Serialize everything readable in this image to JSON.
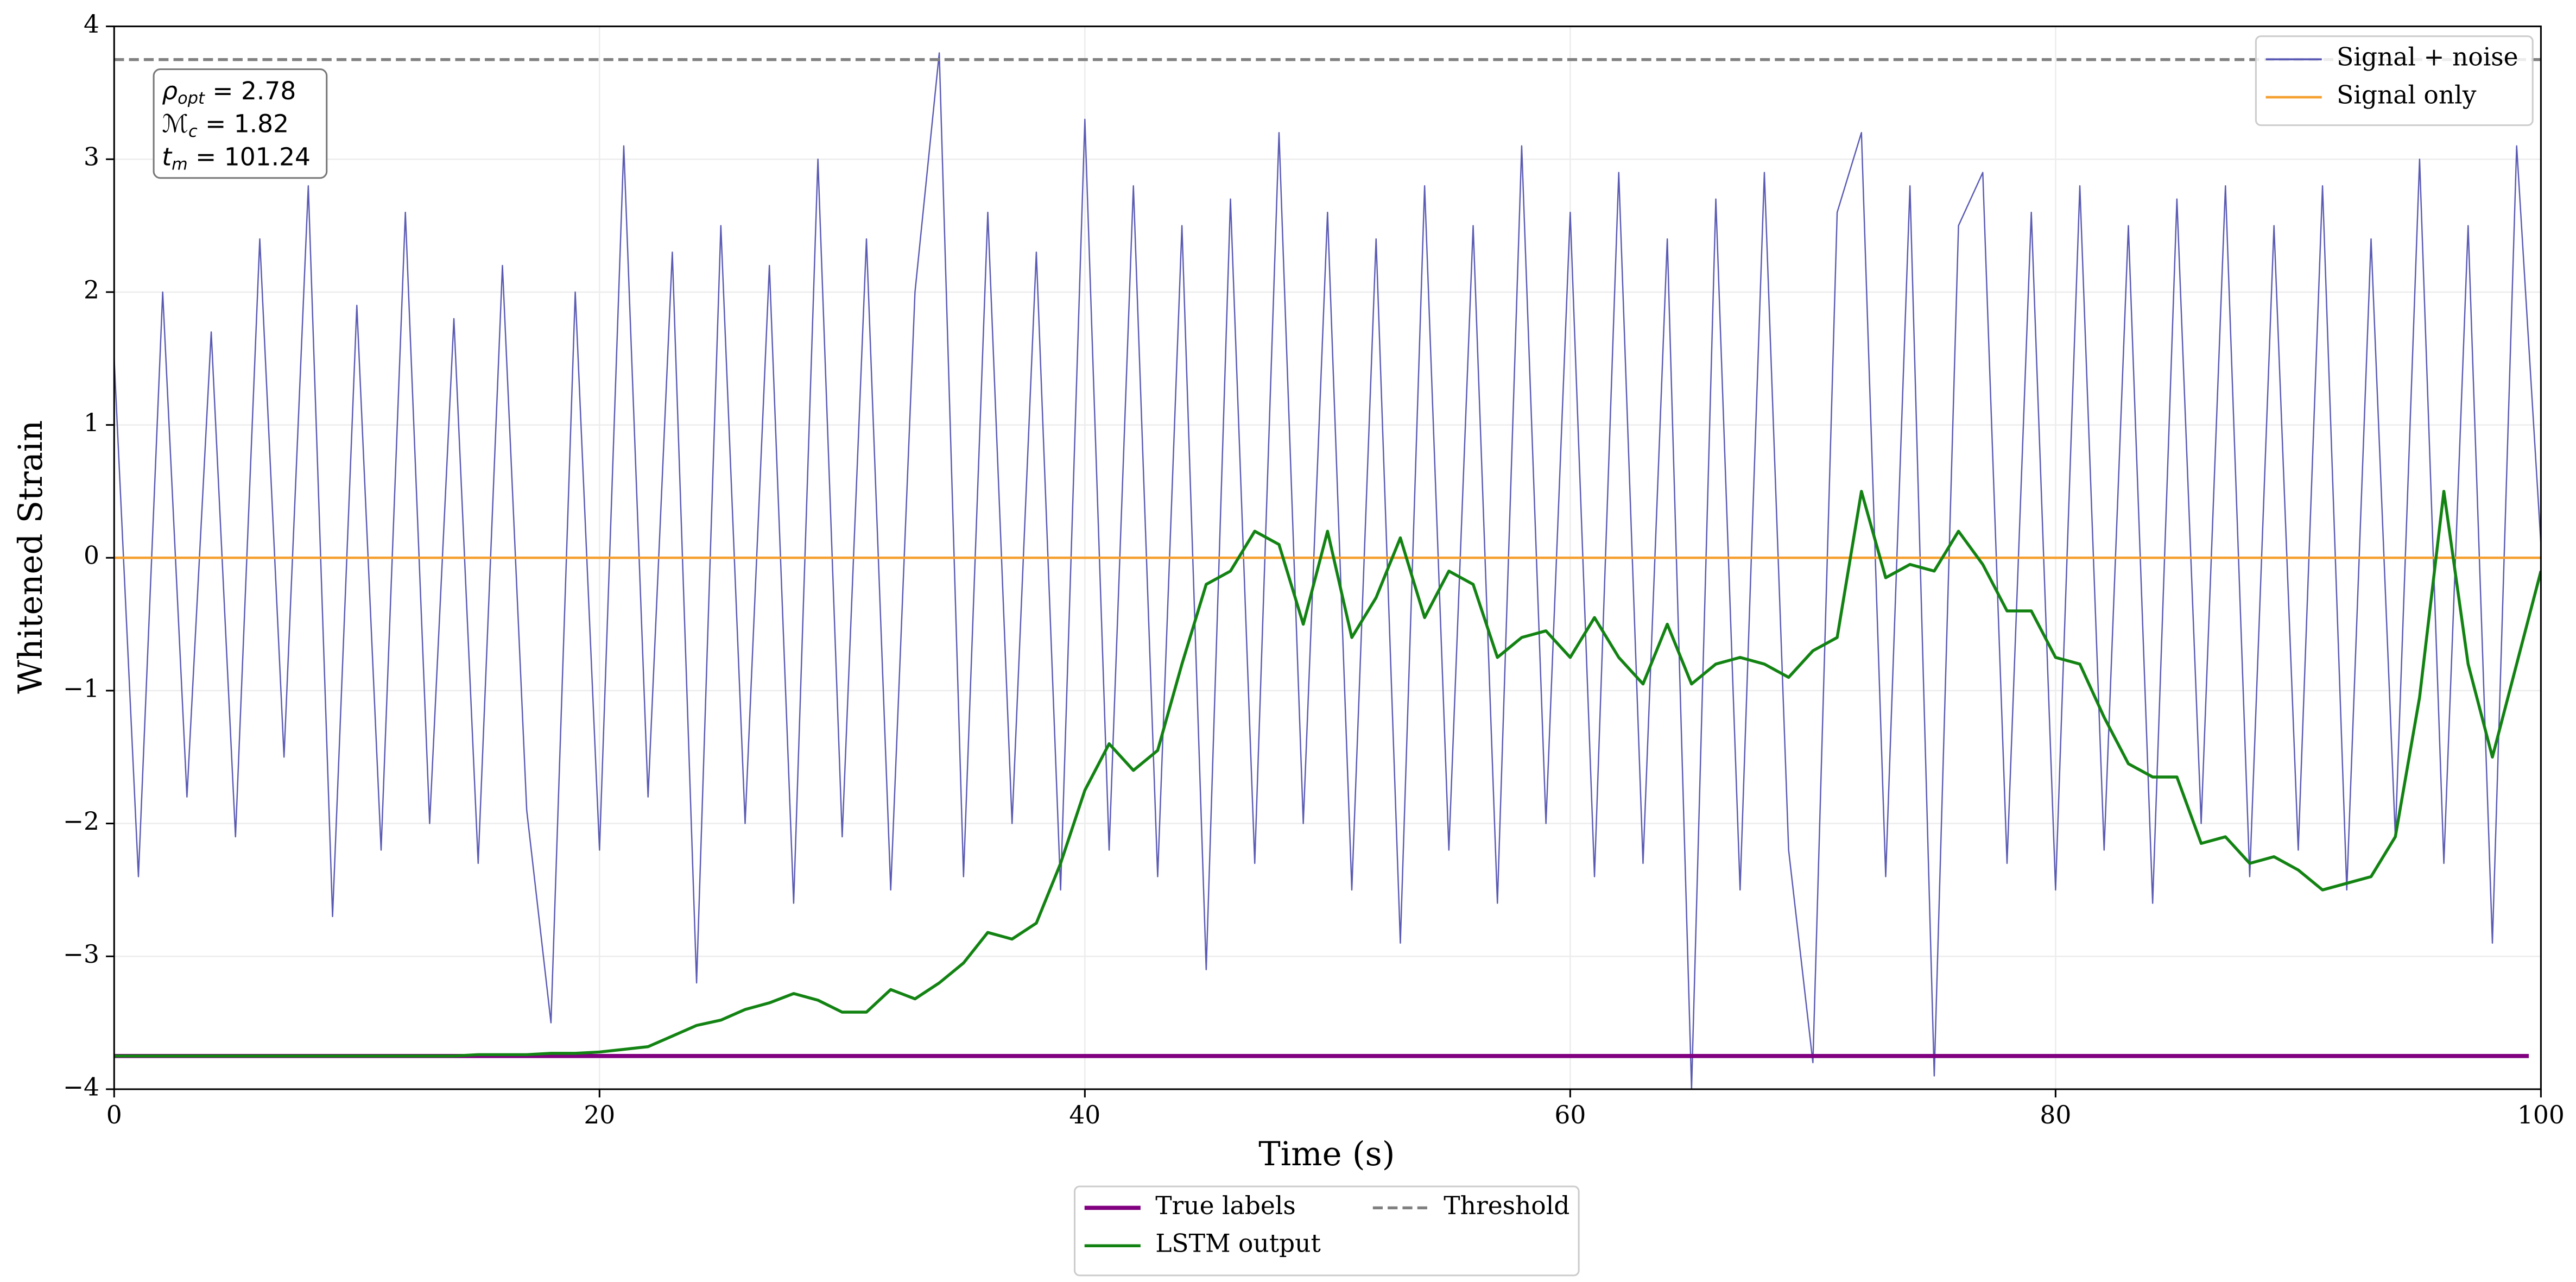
{
  "chart_data": {
    "type": "line",
    "xlabel": "Time (s)",
    "ylabel": "Whitened Strain",
    "xlim": [
      0,
      100
    ],
    "xticks": [
      0,
      20,
      40,
      60,
      80,
      100
    ],
    "ylim": [
      -4,
      4
    ],
    "yticks": [
      {
        "value": -4,
        "label": "−4"
      },
      {
        "value": -3,
        "label": "−3"
      },
      {
        "value": -2,
        "label": "−2"
      },
      {
        "value": -1,
        "label": "−1"
      },
      0,
      1,
      2,
      3,
      4
    ],
    "grid": true,
    "annotations": [
      {
        "symbol": "ρ",
        "sub": "opt",
        "text": " = 2.78"
      },
      {
        "symbol": "ℳ",
        "sub": "c",
        "text": " = 1.82"
      },
      {
        "symbol": "t",
        "sub": "m",
        "text": " = 101.24"
      }
    ],
    "series": [
      {
        "name": "Signal + noise",
        "color": "#5a5ab4",
        "width": 0.8,
        "legend": "upper right",
        "x": [
          0,
          1,
          2,
          3,
          4,
          5,
          6,
          7,
          8,
          9,
          10,
          11,
          12,
          13,
          14,
          15,
          16,
          17,
          18,
          19,
          20,
          21,
          22,
          23,
          24,
          25,
          26,
          27,
          28,
          29,
          30,
          31,
          32,
          33,
          34,
          35,
          36,
          37,
          38,
          39,
          40,
          41,
          42,
          43,
          44,
          45,
          46,
          47,
          48,
          49,
          50,
          51,
          52,
          53,
          54,
          55,
          56,
          57,
          58,
          59,
          60,
          61,
          62,
          63,
          64,
          65,
          66,
          67,
          68,
          69,
          70,
          71,
          72,
          73,
          74,
          75,
          76,
          77,
          78,
          79,
          80,
          81,
          82,
          83,
          84,
          85,
          86,
          87,
          88,
          89,
          90,
          91,
          92,
          93,
          94,
          95,
          96,
          97,
          98,
          99,
          100
        ],
        "values": [
          1.5,
          -2.4,
          2.0,
          -1.8,
          1.7,
          -2.1,
          2.4,
          -1.5,
          2.8,
          -2.7,
          1.9,
          -2.2,
          2.6,
          -2.0,
          1.8,
          -2.3,
          2.2,
          -1.9,
          -3.5,
          2.0,
          -2.2,
          3.1,
          -1.8,
          2.3,
          -3.2,
          2.5,
          -2.0,
          2.2,
          -2.6,
          3.0,
          -2.1,
          2.4,
          -2.5,
          2.0,
          3.8,
          -2.4,
          2.6,
          -2.0,
          2.3,
          -2.5,
          3.3,
          -2.2,
          2.8,
          -2.4,
          2.5,
          -3.1,
          2.7,
          -2.3,
          3.2,
          -2.0,
          2.6,
          -2.5,
          2.4,
          -2.9,
          2.8,
          -2.2,
          2.5,
          -2.6,
          3.1,
          -2.0,
          2.6,
          -2.4,
          2.9,
          -2.3,
          2.4,
          -4.0,
          2.7,
          -2.5,
          2.9,
          -2.2,
          -3.8,
          2.6,
          3.2,
          -2.4,
          2.8,
          -3.9,
          2.5,
          2.9,
          -2.3,
          2.6,
          -2.5,
          2.8,
          -2.2,
          2.5,
          -2.6,
          2.7,
          -2.0,
          2.8,
          -2.4,
          2.5,
          -2.2,
          2.8,
          -2.5,
          2.4,
          -2.1,
          3.0,
          -2.3,
          2.5,
          -2.9,
          3.1,
          0.1
        ]
      },
      {
        "name": "Signal only",
        "color": "#f5a030",
        "width": 1.5,
        "legend": "upper right",
        "x": [
          0,
          10,
          20,
          30,
          40,
          50,
          60,
          70,
          80,
          90,
          100
        ],
        "values": [
          0,
          0,
          0,
          0,
          0,
          0,
          0,
          0,
          0,
          0,
          0
        ]
      },
      {
        "name": "True labels",
        "color": "#800080",
        "width": 2.5,
        "legend": "below",
        "x": [
          0,
          99.5
        ],
        "values": [
          -3.75,
          -3.75
        ]
      },
      {
        "name": "LSTM output",
        "color": "#128312",
        "width": 1.8,
        "legend": "below",
        "x": [
          0,
          1,
          2,
          3,
          4,
          5,
          6,
          7,
          8,
          9,
          10,
          11,
          12,
          13,
          14,
          15,
          16,
          17,
          18,
          19,
          20,
          21,
          22,
          23,
          24,
          25,
          26,
          27,
          28,
          29,
          30,
          31,
          32,
          33,
          34,
          35,
          36,
          37,
          38,
          39,
          40,
          41,
          42,
          43,
          44,
          45,
          46,
          47,
          48,
          49,
          50,
          51,
          52,
          53,
          54,
          55,
          56,
          57,
          58,
          59,
          60,
          61,
          62,
          63,
          64,
          65,
          66,
          67,
          68,
          69,
          70,
          71,
          72,
          73,
          74,
          75,
          76,
          77,
          78,
          79,
          80,
          81,
          82,
          83,
          84,
          85,
          86,
          87,
          88,
          89,
          90,
          91,
          92,
          93,
          94,
          95,
          96,
          97,
          98,
          99,
          100
        ],
        "values": [
          -3.75,
          -3.75,
          -3.75,
          -3.75,
          -3.75,
          -3.75,
          -3.75,
          -3.75,
          -3.75,
          -3.75,
          -3.75,
          -3.75,
          -3.75,
          -3.75,
          -3.75,
          -3.74,
          -3.74,
          -3.74,
          -3.73,
          -3.73,
          -3.72,
          -3.7,
          -3.68,
          -3.6,
          -3.52,
          -3.48,
          -3.4,
          -3.35,
          -3.28,
          -3.33,
          -3.42,
          -3.42,
          -3.25,
          -3.32,
          -3.2,
          -3.05,
          -2.82,
          -2.87,
          -2.75,
          -2.3,
          -1.75,
          -1.4,
          -1.6,
          -1.45,
          -0.8,
          -0.2,
          -0.1,
          0.2,
          0.1,
          -0.5,
          0.2,
          -0.6,
          -0.3,
          0.15,
          -0.45,
          -0.1,
          -0.2,
          -0.75,
          -0.6,
          -0.55,
          -0.75,
          -0.45,
          -0.75,
          -0.95,
          -0.5,
          -0.95,
          -0.8,
          -0.75,
          -0.8,
          -0.9,
          -0.7,
          -0.6,
          0.5,
          -0.15,
          -0.05,
          -0.1,
          0.2,
          -0.05,
          -0.4,
          -0.4,
          -0.75,
          -0.8,
          -1.2,
          -1.55,
          -1.65,
          -1.65,
          -2.15,
          -2.1,
          -2.3,
          -2.25,
          -2.35,
          -2.5,
          -2.45,
          -2.4,
          -2.1,
          -1.05,
          0.5,
          -0.8,
          -1.5,
          -0.8,
          -0.1
        ]
      },
      {
        "name": "Threshold",
        "color": "#808080",
        "width": 1.8,
        "style": "dashed",
        "legend": "below",
        "x": [
          0,
          100
        ],
        "values": [
          3.75,
          3.75
        ]
      }
    ]
  }
}
